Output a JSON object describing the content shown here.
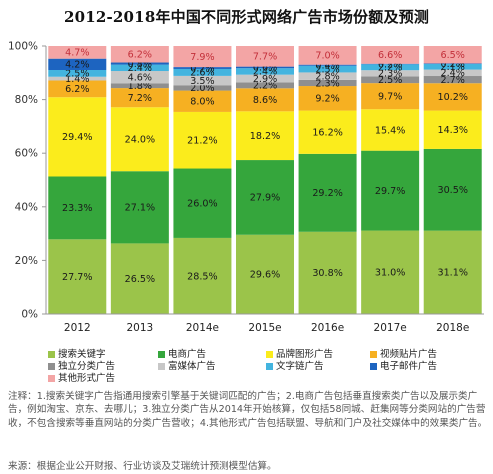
{
  "title": "2012-2018年中国不同形式网络广告市场份额及预测",
  "chart_data": {
    "type": "bar",
    "stacked": true,
    "ylim": [
      0,
      100
    ],
    "yticks": [
      "0%",
      "20%",
      "40%",
      "60%",
      "80%",
      "100%"
    ],
    "categories": [
      "2012",
      "2013",
      "2014e",
      "2015e",
      "2016e",
      "2017e",
      "2018e"
    ],
    "series": [
      {
        "name": "搜索关键字",
        "color": "#9bc44a",
        "label_color": "#1a1a1a",
        "values": [
          27.7,
          26.5,
          28.5,
          29.6,
          30.8,
          31.0,
          31.1
        ]
      },
      {
        "name": "电商广告",
        "color": "#35a63c",
        "label_color": "#1a1a1a",
        "values": [
          23.3,
          27.1,
          26.0,
          27.9,
          29.2,
          29.7,
          30.5
        ]
      },
      {
        "name": "品牌图形广告",
        "color": "#fbec1c",
        "label_color": "#1a1a1a",
        "values": [
          29.4,
          24.0,
          21.2,
          18.2,
          16.2,
          15.4,
          14.3
        ]
      },
      {
        "name": "视频贴片广告",
        "color": "#f6b022",
        "label_color": "#1a1a1a",
        "values": [
          6.2,
          7.2,
          8.0,
          8.6,
          9.2,
          9.7,
          10.2
        ]
      },
      {
        "name": "独立分类广告",
        "color": "#8f8f8f",
        "label_color": "#1a1a1a",
        "values": [
          0,
          1.8,
          2.0,
          2.2,
          2.3,
          2.5,
          2.7
        ]
      },
      {
        "name": "富媒体广告",
        "color": "#c7c7c7",
        "label_color": "#1a1a1a",
        "values": [
          1.4,
          4.6,
          3.5,
          2.9,
          2.8,
          2.3,
          2.4
        ]
      },
      {
        "name": "文字链广告",
        "color": "#43b4df",
        "label_color": "#1a1a1a",
        "values": [
          2.5,
          2.4,
          2.6,
          2.4,
          2.5,
          2.2,
          2.1
        ]
      },
      {
        "name": "电子邮件广告",
        "color": "#1d64c0",
        "label_color": "#1a1a1a",
        "values": [
          4.2,
          0.8,
          0.7,
          0.6,
          0.4,
          0.2,
          0.2
        ]
      },
      {
        "name": "其他形式广告",
        "color": "#f3a5a5",
        "label_color": "#c3303a",
        "values": [
          4.7,
          6.2,
          7.9,
          7.7,
          7.0,
          6.6,
          6.5
        ]
      }
    ]
  },
  "notes": [
    "注释：1.搜索关键字广告指通用搜索引擎基于关键词匹配的广告；2.电商广告包括垂直搜索类广告以及展示类广告，例如淘宝、京东、去哪儿；3.独立分类广告从2014年开始核算，仅包括58同城、赶集网等分类网站的广告营收，不包含搜索等垂直网站的分类广告营收；4.其他形式广告包括联盟、导航和门户及社交媒体中的效果类广告。"
  ],
  "source": "来源：根据企业公开财报、行业访谈及艾瑞统计预测模型估算。"
}
